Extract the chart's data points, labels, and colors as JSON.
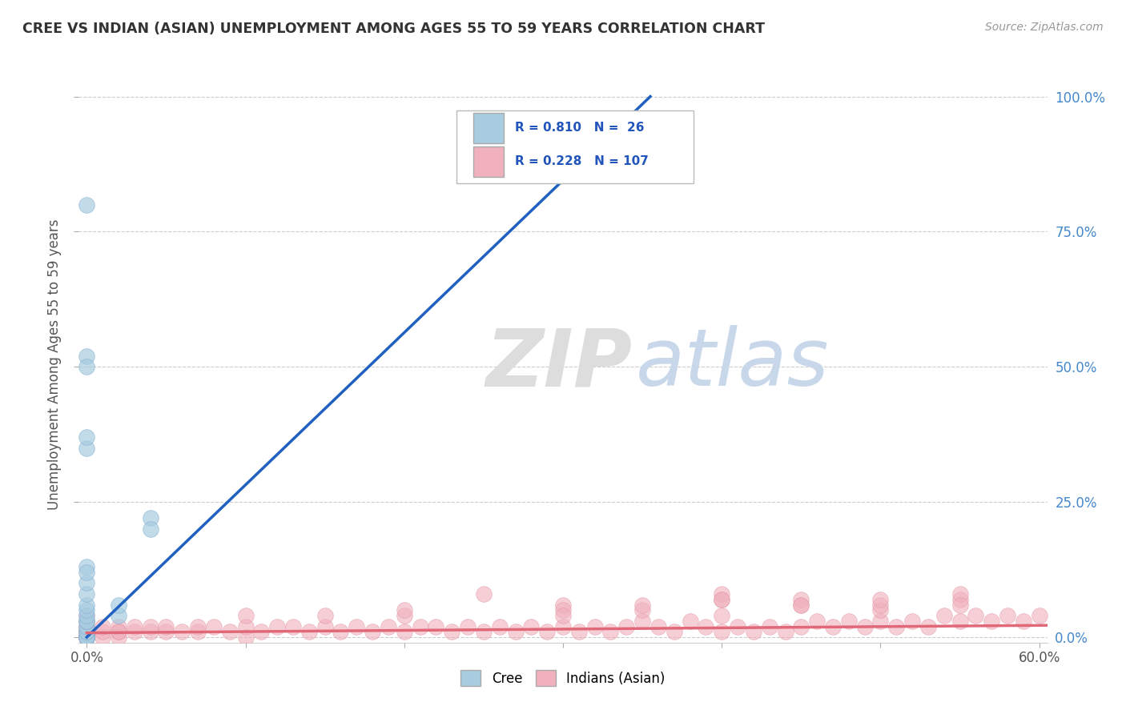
{
  "title": "CREE VS INDIAN (ASIAN) UNEMPLOYMENT AMONG AGES 55 TO 59 YEARS CORRELATION CHART",
  "source": "Source: ZipAtlas.com",
  "ylabel": "Unemployment Among Ages 55 to 59 years",
  "xlabel": "",
  "xlim": [
    -0.005,
    0.605
  ],
  "ylim": [
    -0.01,
    1.02
  ],
  "yticks": [
    0.0,
    0.25,
    0.5,
    0.75,
    1.0
  ],
  "yticklabels": [
    "0.0%",
    "25.0%",
    "50.0%",
    "75.0%",
    "100.0%"
  ],
  "cree_color": "#a8cce0",
  "indian_color": "#f0b0bc",
  "cree_line_color": "#2060c0",
  "indian_line_color": "#e06878",
  "cree_R": 0.81,
  "cree_N": 26,
  "indian_R": 0.228,
  "indian_N": 107,
  "background_color": "#ffffff",
  "grid_color": "#cccccc",
  "cree_scatter_x": [
    0.0,
    0.0,
    0.0,
    0.0,
    0.0,
    0.0,
    0.0,
    0.0,
    0.0,
    0.0,
    0.0,
    0.0,
    0.0,
    0.0,
    0.0,
    0.0,
    0.0,
    0.0,
    0.02,
    0.02,
    0.04,
    0.04,
    0.0,
    0.0,
    0.0,
    0.0
  ],
  "cree_scatter_y": [
    0.0,
    0.0,
    0.0,
    0.0,
    0.0,
    0.01,
    0.01,
    0.02,
    0.03,
    0.03,
    0.04,
    0.05,
    0.06,
    0.08,
    0.1,
    0.13,
    0.52,
    0.8,
    0.04,
    0.06,
    0.22,
    0.2,
    0.35,
    0.37,
    0.5,
    0.12
  ],
  "indian_scatter_x": [
    0.0,
    0.0,
    0.0,
    0.0,
    0.0,
    0.0,
    0.0,
    0.0,
    0.0,
    0.0,
    0.0,
    0.0,
    0.0,
    0.0,
    0.01,
    0.01,
    0.01,
    0.02,
    0.02,
    0.02,
    0.02,
    0.03,
    0.03,
    0.04,
    0.04,
    0.05,
    0.05,
    0.06,
    0.07,
    0.07,
    0.08,
    0.09,
    0.1,
    0.1,
    0.11,
    0.12,
    0.13,
    0.14,
    0.15,
    0.16,
    0.17,
    0.18,
    0.19,
    0.2,
    0.21,
    0.22,
    0.23,
    0.24,
    0.25,
    0.26,
    0.27,
    0.28,
    0.29,
    0.3,
    0.31,
    0.32,
    0.33,
    0.34,
    0.35,
    0.36,
    0.37,
    0.38,
    0.39,
    0.4,
    0.41,
    0.42,
    0.43,
    0.44,
    0.45,
    0.46,
    0.47,
    0.48,
    0.49,
    0.5,
    0.51,
    0.52,
    0.53,
    0.54,
    0.55,
    0.56,
    0.57,
    0.58,
    0.59,
    0.6,
    0.25,
    0.3,
    0.35,
    0.4,
    0.45,
    0.5,
    0.55,
    0.2,
    0.4,
    0.45,
    0.5,
    0.55,
    0.1,
    0.15,
    0.2,
    0.3,
    0.35,
    0.4,
    0.45,
    0.5,
    0.55,
    0.3,
    0.4
  ],
  "indian_scatter_y": [
    0.0,
    0.0,
    0.0,
    0.0,
    0.0,
    0.0,
    0.0,
    0.01,
    0.01,
    0.01,
    0.02,
    0.02,
    0.03,
    0.04,
    0.0,
    0.01,
    0.02,
    0.0,
    0.01,
    0.02,
    0.01,
    0.01,
    0.02,
    0.01,
    0.02,
    0.01,
    0.02,
    0.01,
    0.01,
    0.02,
    0.02,
    0.01,
    0.0,
    0.02,
    0.01,
    0.02,
    0.02,
    0.01,
    0.02,
    0.01,
    0.02,
    0.01,
    0.02,
    0.01,
    0.02,
    0.02,
    0.01,
    0.02,
    0.01,
    0.02,
    0.01,
    0.02,
    0.01,
    0.02,
    0.01,
    0.02,
    0.01,
    0.02,
    0.03,
    0.02,
    0.01,
    0.03,
    0.02,
    0.01,
    0.02,
    0.01,
    0.02,
    0.01,
    0.02,
    0.03,
    0.02,
    0.03,
    0.02,
    0.03,
    0.02,
    0.03,
    0.02,
    0.04,
    0.03,
    0.04,
    0.03,
    0.04,
    0.03,
    0.04,
    0.08,
    0.06,
    0.05,
    0.07,
    0.06,
    0.05,
    0.07,
    0.04,
    0.08,
    0.07,
    0.06,
    0.08,
    0.04,
    0.04,
    0.05,
    0.05,
    0.06,
    0.07,
    0.06,
    0.07,
    0.06,
    0.04,
    0.04
  ],
  "cree_line_x": [
    0.0,
    0.355
  ],
  "cree_line_y": [
    0.0,
    1.0
  ],
  "indian_line_x": [
    0.0,
    0.605
  ],
  "indian_line_y": [
    0.008,
    0.022
  ]
}
